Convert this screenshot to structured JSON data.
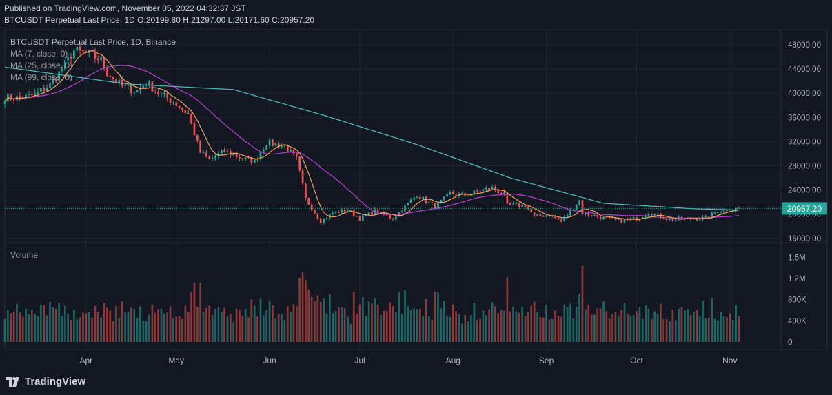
{
  "header": {
    "published": "Published on TradingView.com, November 05, 2022 04:32:37 JST",
    "ohlc": "BTCUSDT Perpetual Last Price, 1D  O:20199.80 H:21297.00 L:20171.60 C:20957.20"
  },
  "legend": {
    "title": "BTCUSDT Perpetual Last Price, 1D, Binance",
    "ma7": "MA (7, close, 0)",
    "ma25": "MA (25, close, 0)",
    "ma99": "MA (99, close, 0)",
    "volume": "Volume"
  },
  "brand": {
    "name": "TradingView"
  },
  "colors": {
    "background": "#131722",
    "up": "#26a69a",
    "down": "#ef5350",
    "ma7": "#f7a35c",
    "ma25": "#ba3fd4",
    "ma99": "#4dc0c0",
    "grid": "#1f2430",
    "last_price_bg": "#26a69a"
  },
  "chart_data": {
    "type": "candlestick",
    "symbol": "BTCUSDT Perpetual",
    "price_axis": {
      "ticks": [
        16000,
        20000,
        24000,
        28000,
        32000,
        36000,
        40000,
        44000,
        48000
      ],
      "tick_labels": [
        "16000.00",
        "20000.00",
        "24000.00",
        "28000.00",
        "32000.00",
        "36000.00",
        "40000.00",
        "44000.00",
        "48000.00"
      ],
      "range": [
        15300,
        50500
      ]
    },
    "volume_axis": {
      "ticks": [
        0,
        400000,
        800000,
        1200000,
        1600000
      ],
      "tick_labels": [
        "0",
        "400K",
        "800K",
        "1.2M",
        "1.6M"
      ],
      "range": [
        0,
        1750000
      ]
    },
    "time_axis": {
      "labels": [
        {
          "label": "Apr",
          "date": "2022-04-01"
        },
        {
          "label": "May",
          "date": "2022-05-01"
        },
        {
          "label": "Jun",
          "date": "2022-06-01"
        },
        {
          "label": "Jul",
          "date": "2022-07-01"
        },
        {
          "label": "Aug",
          "date": "2022-08-01"
        },
        {
          "label": "Sep",
          "date": "2022-09-01"
        },
        {
          "label": "Oct",
          "date": "2022-10-01"
        },
        {
          "label": "Nov",
          "date": "2022-11-01"
        }
      ],
      "range": [
        "2022-03-05",
        "2022-11-18"
      ]
    },
    "last_price": 20957.2,
    "last_price_label": "20957.20",
    "close_key_points": [
      [
        "2022-03-05",
        39300
      ],
      [
        "2022-03-10",
        39200
      ],
      [
        "2022-03-15",
        39700
      ],
      [
        "2022-03-20",
        41400
      ],
      [
        "2022-03-24",
        44000
      ],
      [
        "2022-03-28",
        47100
      ],
      [
        "2022-04-02",
        46400
      ],
      [
        "2022-04-06",
        45500
      ],
      [
        "2022-04-08",
        43400
      ],
      [
        "2022-04-13",
        41100
      ],
      [
        "2022-04-18",
        40400
      ],
      [
        "2022-04-21",
        41800
      ],
      [
        "2022-04-25",
        40000
      ],
      [
        "2022-04-30",
        38600
      ],
      [
        "2022-05-05",
        36500
      ],
      [
        "2022-05-09",
        30200
      ],
      [
        "2022-05-12",
        29000
      ],
      [
        "2022-05-17",
        30400
      ],
      [
        "2022-05-23",
        29200
      ],
      [
        "2022-05-27",
        28800
      ],
      [
        "2022-05-31",
        31800
      ],
      [
        "2022-06-06",
        31300
      ],
      [
        "2022-06-10",
        29100
      ],
      [
        "2022-06-13",
        22500
      ],
      [
        "2022-06-18",
        18900
      ],
      [
        "2022-06-22",
        20200
      ],
      [
        "2022-06-27",
        20700
      ],
      [
        "2022-07-01",
        19300
      ],
      [
        "2022-07-06",
        20500
      ],
      [
        "2022-07-12",
        19300
      ],
      [
        "2022-07-15",
        20800
      ],
      [
        "2022-07-20",
        23200
      ],
      [
        "2022-07-26",
        21200
      ],
      [
        "2022-07-31",
        23400
      ],
      [
        "2022-08-05",
        23100
      ],
      [
        "2022-08-10",
        23900
      ],
      [
        "2022-08-14",
        24300
      ],
      [
        "2022-08-18",
        23200
      ],
      [
        "2022-08-19",
        21400
      ],
      [
        "2022-08-25",
        21500
      ],
      [
        "2022-08-28",
        19600
      ],
      [
        "2022-09-02",
        19900
      ],
      [
        "2022-09-06",
        18800
      ],
      [
        "2022-09-12",
        22300
      ],
      [
        "2022-09-13",
        20200
      ],
      [
        "2022-09-19",
        19500
      ],
      [
        "2022-09-25",
        18900
      ],
      [
        "2022-10-01",
        19300
      ],
      [
        "2022-10-05",
        20300
      ],
      [
        "2022-10-12",
        19100
      ],
      [
        "2022-10-18",
        19300
      ],
      [
        "2022-10-24",
        19300
      ],
      [
        "2022-10-28",
        20600
      ],
      [
        "2022-11-04",
        20957
      ]
    ],
    "ma99_key_points": [
      [
        "2022-03-05",
        44300
      ],
      [
        "2022-04-15",
        41500
      ],
      [
        "2022-05-20",
        40600
      ],
      [
        "2022-06-20",
        36200
      ],
      [
        "2022-07-20",
        31500
      ],
      [
        "2022-08-20",
        26000
      ],
      [
        "2022-09-20",
        21800
      ],
      [
        "2022-10-20",
        20900
      ],
      [
        "2022-11-04",
        20700
      ]
    ],
    "note": "Daily candles; individual OHLC/volume bars are approximated around the close trajectory."
  }
}
